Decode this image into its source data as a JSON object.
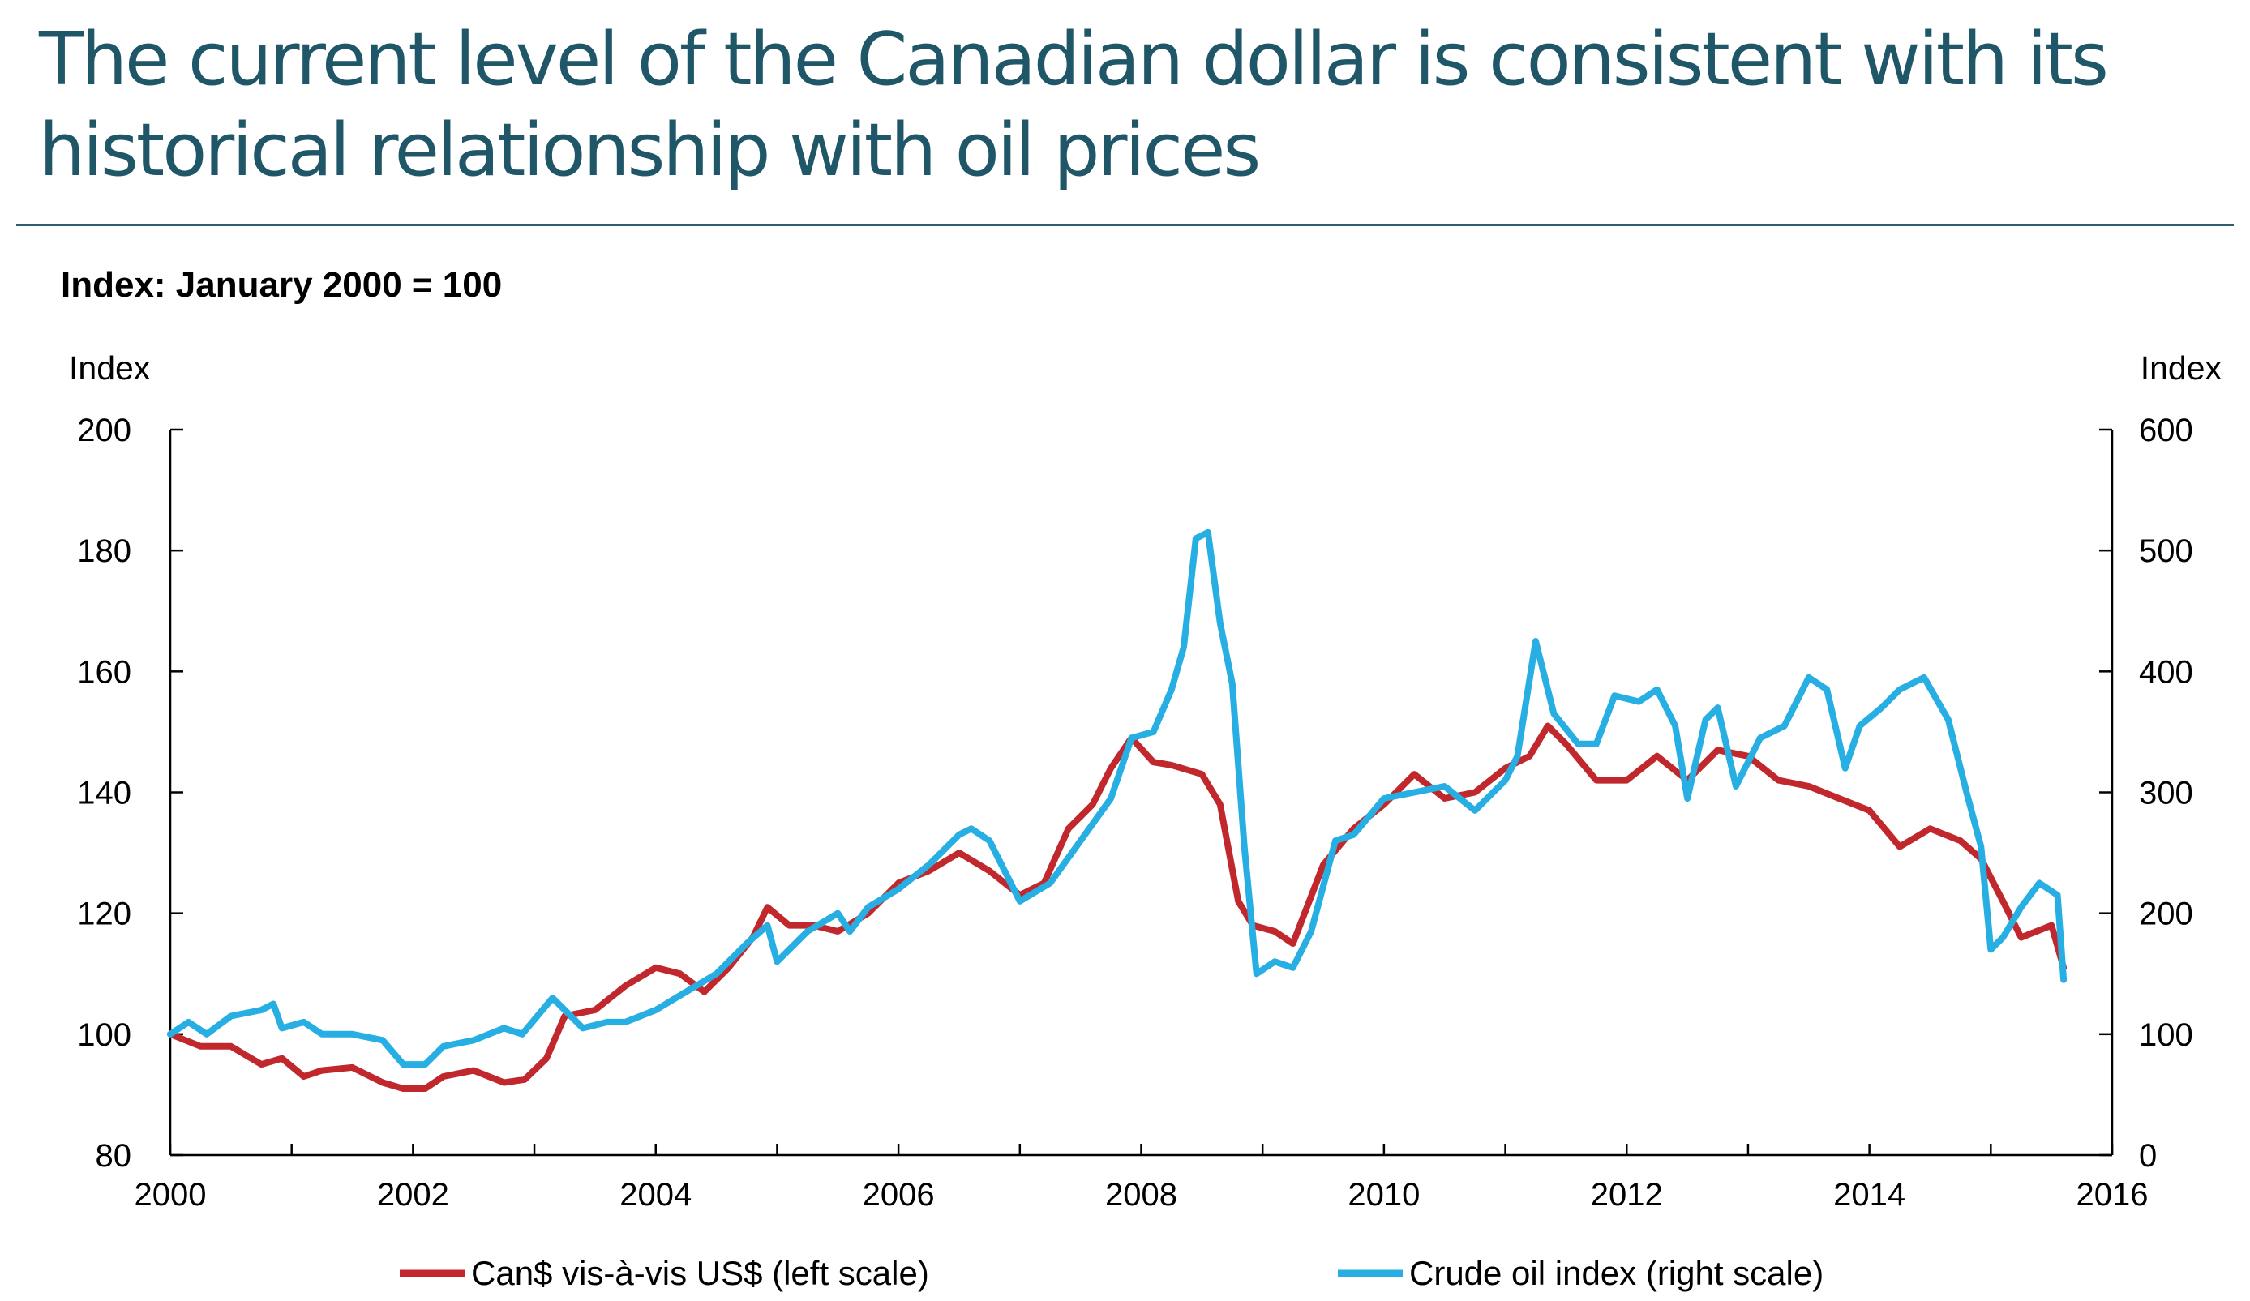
{
  "title": "The current level of the Canadian dollar is consistent with its historical relationship with oil prices",
  "subtitle": "Index: January 2000 = 100",
  "colors": {
    "title": "#1f5668",
    "cad_series": "#c0282d",
    "oil_series": "#27aee3"
  },
  "chart_data": {
    "type": "line",
    "grid": false,
    "legend_position": "bottom",
    "x_axis": {
      "min": 2000,
      "max": 2016,
      "ticks": [
        "2000",
        "2002",
        "2004",
        "2006",
        "2008",
        "2010",
        "2012",
        "2014",
        "2016"
      ]
    },
    "y_left": {
      "label": "Index",
      "min": 80,
      "max": 200,
      "ticks": [
        "80",
        "100",
        "120",
        "140",
        "160",
        "180",
        "200"
      ]
    },
    "y_right": {
      "label": "Index",
      "min": 0,
      "max": 600,
      "ticks": [
        "0",
        "100",
        "200",
        "300",
        "400",
        "500",
        "600"
      ]
    },
    "series": [
      {
        "name": "Can$ vis-à-vis US$ (left scale)",
        "axis": "left",
        "color": "#c0282d",
        "x": [
          2000.0,
          2000.25,
          2000.5,
          2000.75,
          2000.92,
          2001.1,
          2001.25,
          2001.5,
          2001.75,
          2001.92,
          2002.1,
          2002.25,
          2002.5,
          2002.75,
          2002.92,
          2003.1,
          2003.25,
          2003.5,
          2003.75,
          2004.0,
          2004.2,
          2004.4,
          2004.6,
          2004.8,
          2004.92,
          2005.1,
          2005.3,
          2005.5,
          2005.75,
          2006.0,
          2006.25,
          2006.5,
          2006.75,
          2007.0,
          2007.2,
          2007.4,
          2007.6,
          2007.75,
          2007.92,
          2008.1,
          2008.25,
          2008.5,
          2008.65,
          2008.8,
          2008.92,
          2009.1,
          2009.25,
          2009.5,
          2009.75,
          2010.0,
          2010.25,
          2010.5,
          2010.75,
          2011.0,
          2011.2,
          2011.35,
          2011.5,
          2011.75,
          2012.0,
          2012.25,
          2012.5,
          2012.75,
          2013.0,
          2013.25,
          2013.5,
          2013.75,
          2014.0,
          2014.25,
          2014.5,
          2014.75,
          2014.92,
          2015.1,
          2015.25,
          2015.5,
          2015.6
        ],
        "values": [
          100.0,
          98.0,
          98.0,
          95.0,
          96.0,
          93.0,
          94.0,
          94.5,
          92.0,
          91.0,
          91.0,
          93.0,
          94.0,
          92.0,
          92.5,
          96.0,
          103.0,
          104.0,
          108.0,
          111.0,
          110.0,
          107.0,
          111.0,
          116.0,
          121.0,
          118.0,
          118.0,
          117.0,
          120.0,
          125.0,
          127.0,
          130.0,
          127.0,
          123.0,
          125.0,
          134.0,
          138.0,
          144.0,
          149.0,
          145.0,
          144.5,
          143.0,
          138.0,
          122.0,
          118.0,
          117.0,
          115.0,
          128.0,
          134.0,
          138.0,
          143.0,
          139.0,
          140.0,
          144.0,
          146.0,
          151.0,
          148.0,
          142.0,
          142.0,
          146.0,
          142.0,
          147.0,
          146.0,
          142.0,
          141.0,
          139.0,
          137.0,
          131.0,
          134.0,
          132.0,
          129.0,
          122.0,
          116.0,
          118.0,
          111.0
        ]
      },
      {
        "name": "Crude oil index (right scale)",
        "axis": "right",
        "color": "#27aee3",
        "x": [
          2000.0,
          2000.15,
          2000.3,
          2000.5,
          2000.75,
          2000.85,
          2000.92,
          2001.1,
          2001.25,
          2001.5,
          2001.75,
          2001.92,
          2002.1,
          2002.25,
          2002.5,
          2002.75,
          2002.9,
          2003.15,
          2003.25,
          2003.4,
          2003.6,
          2003.75,
          2004.0,
          2004.25,
          2004.5,
          2004.75,
          2004.92,
          2005.0,
          2005.25,
          2005.5,
          2005.6,
          2005.75,
          2006.0,
          2006.25,
          2006.5,
          2006.6,
          2006.75,
          2007.0,
          2007.25,
          2007.5,
          2007.75,
          2007.92,
          2008.1,
          2008.25,
          2008.35,
          2008.45,
          2008.55,
          2008.65,
          2008.75,
          2008.85,
          2008.95,
          2009.1,
          2009.25,
          2009.4,
          2009.6,
          2009.75,
          2010.0,
          2010.25,
          2010.5,
          2010.75,
          2011.0,
          2011.1,
          2011.25,
          2011.4,
          2011.6,
          2011.75,
          2011.9,
          2012.1,
          2012.25,
          2012.4,
          2012.5,
          2012.65,
          2012.75,
          2012.9,
          2013.1,
          2013.3,
          2013.5,
          2013.65,
          2013.8,
          2013.92,
          2014.1,
          2014.25,
          2014.45,
          2014.65,
          2014.8,
          2014.92,
          2015.0,
          2015.1,
          2015.25,
          2015.4,
          2015.55,
          2015.6
        ],
        "values": [
          100.0,
          110.0,
          100.0,
          115.0,
          120.0,
          125.0,
          105.0,
          110.0,
          100.0,
          100.0,
          95.0,
          75.0,
          75.0,
          90.0,
          95.0,
          105.0,
          100.0,
          130.0,
          120.0,
          105.0,
          110.0,
          110.0,
          120.0,
          135.0,
          150.0,
          175.0,
          190.0,
          160.0,
          185.0,
          200.0,
          185.0,
          205.0,
          220.0,
          240.0,
          265.0,
          270.0,
          260.0,
          210.0,
          225.0,
          260.0,
          295.0,
          345.0,
          350.0,
          385.0,
          420.0,
          510.0,
          515.0,
          440.0,
          390.0,
          255.0,
          150.0,
          160.0,
          155.0,
          185.0,
          260.0,
          265.0,
          295.0,
          300.0,
          305.0,
          285.0,
          310.0,
          330.0,
          425.0,
          365.0,
          340.0,
          340.0,
          380.0,
          375.0,
          385.0,
          355.0,
          295.0,
          360.0,
          370.0,
          305.0,
          345.0,
          355.0,
          395.0,
          385.0,
          320.0,
          355.0,
          370.0,
          385.0,
          395.0,
          360.0,
          300.0,
          255.0,
          170.0,
          180.0,
          205.0,
          225.0,
          215.0,
          145.0
        ]
      }
    ]
  }
}
